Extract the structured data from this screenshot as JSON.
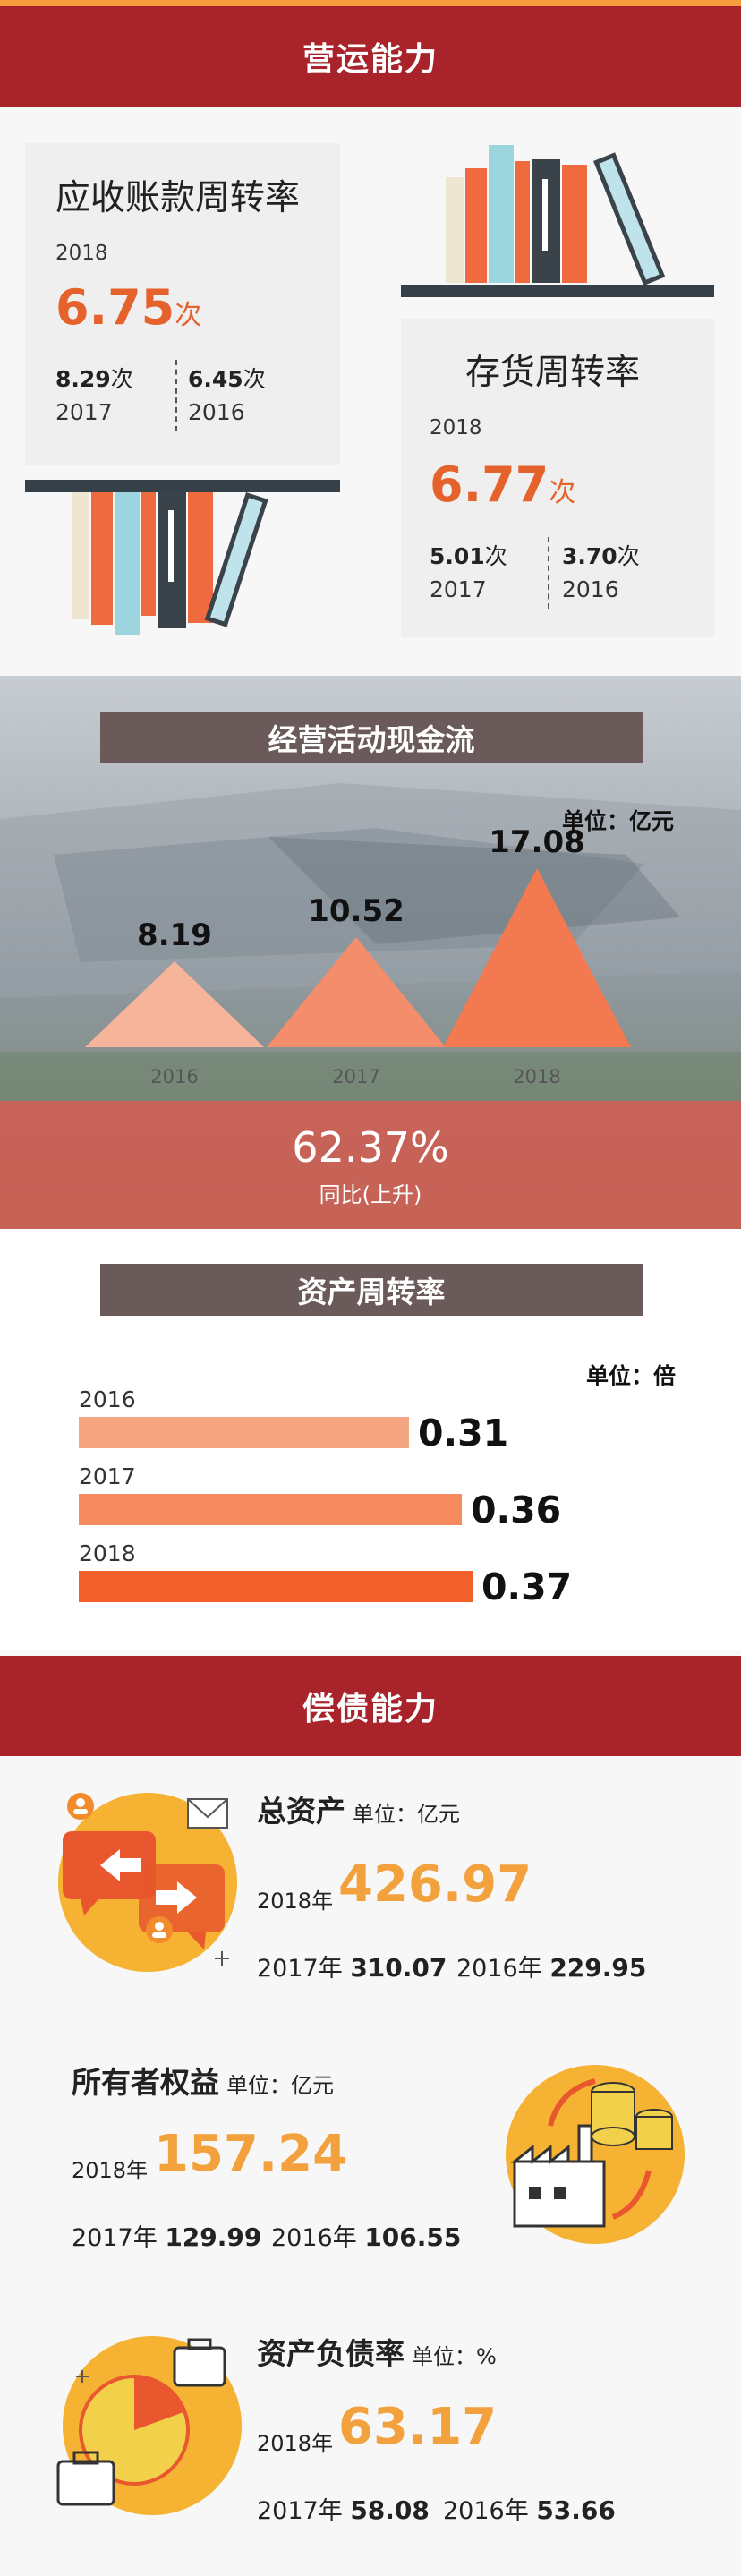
{
  "operating": {
    "header": "营运能力",
    "receivable": {
      "title": "应收账款周转率",
      "year": "2018",
      "value": "6.75",
      "unit": "次",
      "prev": [
        {
          "value": "8.29",
          "unit": "次",
          "year": "2017"
        },
        {
          "value": "6.45",
          "unit": "次",
          "year": "2016"
        }
      ]
    },
    "inventory": {
      "title": "存货周转率",
      "year": "2018",
      "value": "6.77",
      "unit": "次",
      "prev": [
        {
          "value": "5.01",
          "unit": "次",
          "year": "2017"
        },
        {
          "value": "3.70",
          "unit": "次",
          "year": "2016"
        }
      ]
    }
  },
  "cashflow": {
    "banner": "经营活动现金流",
    "unit_label": "单位：亿元",
    "change_value": "62.37%",
    "change_label": "同比(上升)"
  },
  "asset_turnover": {
    "banner": "资产周转率",
    "unit_label": "单位：倍"
  },
  "chart_data": [
    {
      "type": "area",
      "title": "经营活动现金流",
      "categories": [
        "2016",
        "2017",
        "2018"
      ],
      "values": [
        8.19,
        10.52,
        17.08
      ],
      "value_labels": [
        "8.19",
        "10.52",
        "17.08"
      ],
      "unit": "单位：亿元",
      "colors": [
        "#f6b49a",
        "#f48d6c",
        "#f37a50"
      ]
    },
    {
      "type": "bar",
      "title": "资产周转率",
      "categories": [
        "2016",
        "2017",
        "2018"
      ],
      "values": [
        0.31,
        0.36,
        0.37
      ],
      "value_labels": [
        "0.31",
        "0.36",
        "0.37"
      ],
      "unit": "单位：倍",
      "colors": [
        "#f6a583",
        "#f48a5e",
        "#f25f2b"
      ]
    }
  ],
  "solvency": {
    "header": "偿债能力",
    "total_assets": {
      "title": "总资产",
      "unit": "单位：亿元",
      "year_label": "2018年",
      "value": "426.97",
      "prev": [
        {
          "year": "2017年",
          "value": "310.07"
        },
        {
          "year": "2016年",
          "value": "229.95"
        }
      ]
    },
    "equity": {
      "title": "所有者权益",
      "unit": "单位：亿元",
      "year_label": "2018年",
      "value": "157.24",
      "prev": [
        {
          "year": "2017年",
          "value": "129.99"
        },
        {
          "year": "2016年",
          "value": "106.55"
        }
      ]
    },
    "debt_ratio": {
      "title": "资产负债率",
      "unit": "单位：%",
      "year_label": "2018年",
      "value": "63.17",
      "prev": [
        {
          "year": "2017年",
          "value": "58.08"
        },
        {
          "year": "2016年",
          "value": "53.66"
        }
      ]
    }
  },
  "colors": {
    "header_red": "#a8232a",
    "accent_orange": "#e6622c",
    "gold": "#f2a13c",
    "banner_brown": "#6a5a59"
  },
  "icons": [
    "books-icon",
    "chat-people-icon",
    "factory-coins-icon",
    "pie-briefcase-icon"
  ]
}
